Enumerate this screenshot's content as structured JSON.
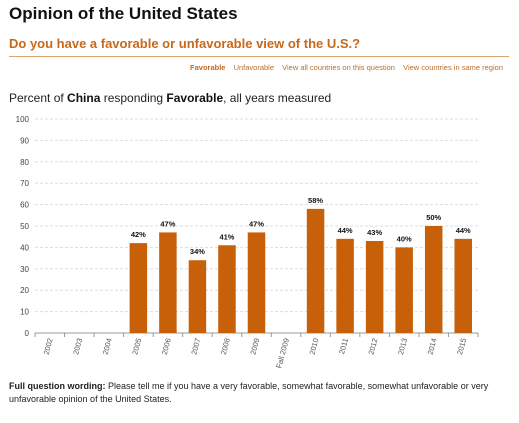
{
  "page": {
    "title": "Opinion of the United States",
    "subtitle": "Do you have a favorable or unfavorable view of the U.S.?"
  },
  "tabs": [
    {
      "label": "Favorable",
      "active": true
    },
    {
      "label": "Unfavorable",
      "active": false
    },
    {
      "label": "View all countries on this question",
      "active": false
    },
    {
      "label": "View countries in same region",
      "active": false
    }
  ],
  "heading": {
    "prefix": "Percent of ",
    "country": "China",
    "middle": " responding ",
    "measure": "Favorable",
    "suffix": ", all years measured"
  },
  "footer": {
    "label": "Full question wording:",
    "text": " Please tell me if you have a very favorable, somewhat favorable, somewhat unfavorable or very unfavorable opinion of the United States."
  },
  "chart_data": {
    "type": "bar",
    "categories": [
      "2002",
      "2003",
      "2004",
      "2005",
      "2006",
      "2007",
      "2008",
      "2009",
      "Fall 2009",
      "2010",
      "2011",
      "2012",
      "2013",
      "2014",
      "2015"
    ],
    "values": [
      null,
      null,
      null,
      42,
      47,
      34,
      41,
      47,
      null,
      58,
      44,
      43,
      40,
      50,
      44
    ],
    "data_labels": [
      "",
      "",
      "",
      "42%",
      "47%",
      "34%",
      "41%",
      "47%",
      "",
      "58%",
      "44%",
      "43%",
      "40%",
      "50%",
      "44%"
    ],
    "ylim": [
      0,
      100
    ],
    "yticks": [
      0,
      10,
      20,
      30,
      40,
      50,
      60,
      70,
      80,
      90,
      100
    ],
    "grid": true,
    "bar_color": "#c8600a",
    "grid_color": "#dddddd"
  }
}
